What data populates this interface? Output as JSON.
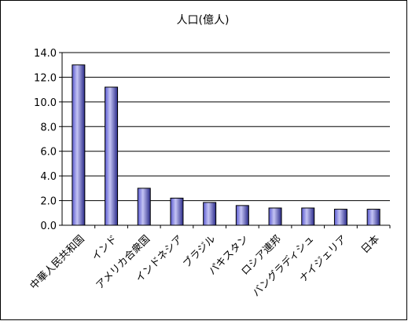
{
  "chart_data": {
    "type": "bar",
    "title": "人口(億人)",
    "xlabel": "",
    "ylabel": "",
    "categories": [
      "中華人民共和国",
      "インド",
      "アメリカ合衆国",
      "インドネシア",
      "ブラジル",
      "パキスタン",
      "ロシア連邦",
      "バングラディシュ",
      "ナイジェリア",
      "日本"
    ],
    "values": [
      13.0,
      11.2,
      3.0,
      2.2,
      1.85,
      1.6,
      1.4,
      1.4,
      1.3,
      1.3
    ],
    "ylim": [
      0,
      14
    ],
    "yticks": [
      "0.0",
      "2.0",
      "4.0",
      "6.0",
      "8.0",
      "10.0",
      "12.0",
      "14.0"
    ],
    "grid": true,
    "legend": "none",
    "colors": {
      "bar_left": "#6a6ad8",
      "bar_right": "#2a2a8a",
      "bar_light": "#c4c4f4",
      "outline": "#000000"
    }
  }
}
